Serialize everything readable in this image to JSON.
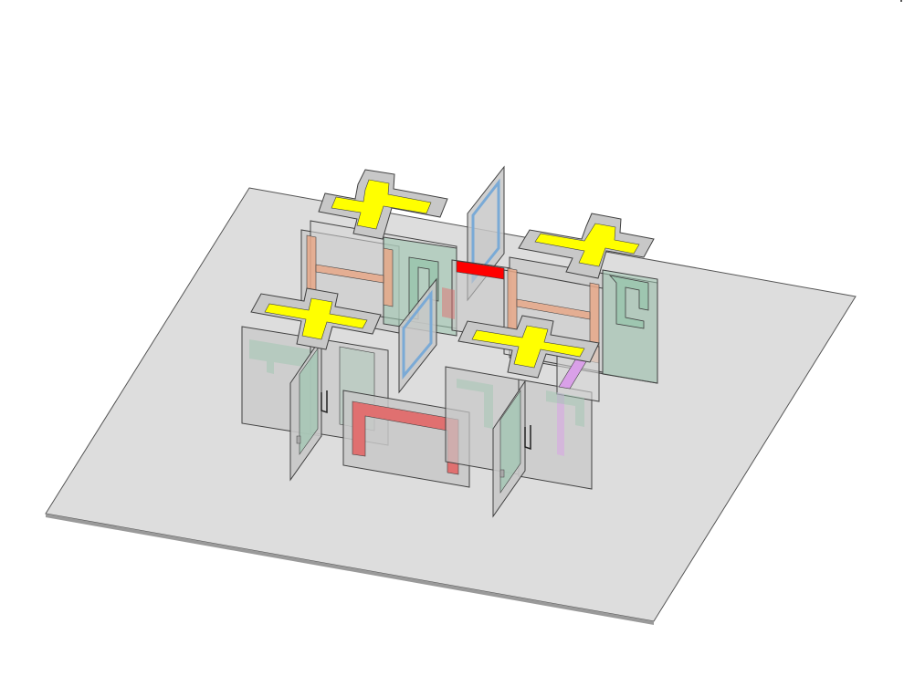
{
  "colors": {
    "background": "#ffffff",
    "ground": "#dddddd",
    "ground_stroke": "#555555",
    "panel_gray": "#c8c8c8",
    "panel_gray_light": "#d6d6d6",
    "panel_green": "#9ec6b0",
    "pad_outline": "#c8c8c8",
    "pad_yellow": "#ffff00",
    "trace_orange": "#e8a888",
    "trace_red": "#ff0000",
    "trace_pink": "#e07070",
    "trace_violet": "#d9a0e8",
    "trace_blue": "#7aaad6",
    "edge": "#404040"
  },
  "objects": [
    "ground-plane",
    "cross-pad-back-left",
    "cross-pad-back-right",
    "cross-pad-front-left",
    "cross-pad-front-right",
    "orange-h-trace-left",
    "orange-h-trace-right",
    "red-strip",
    "red-u-trace",
    "blue-frame-panel-back",
    "blue-frame-panel-left",
    "green-hook-panel-right",
    "violet-diagonal-trace"
  ]
}
